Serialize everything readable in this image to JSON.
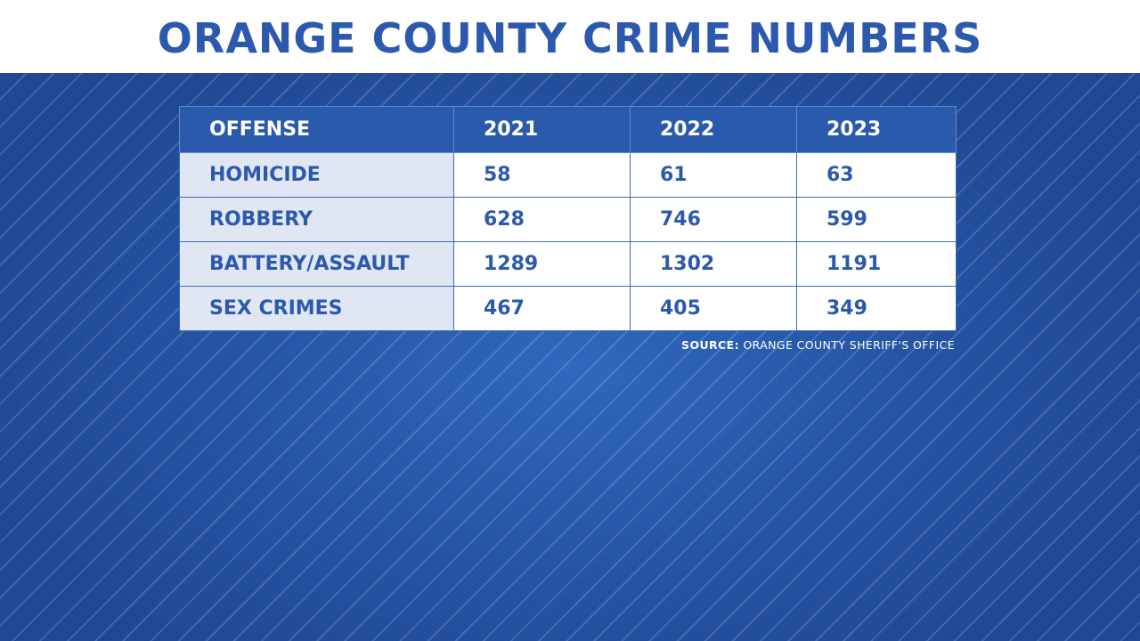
{
  "title": "ORANGE COUNTY CRIME NUMBERS",
  "source": {
    "label": "SOURCE:",
    "text": "ORANGE COUNTY SHERIFF'S OFFICE"
  },
  "colors": {
    "title": "#2c59ad",
    "header_bg": "#2a5aac",
    "label_bg": "#e0e7f3",
    "background": "#2757a8"
  },
  "chart_data": {
    "type": "table",
    "title": "ORANGE COUNTY CRIME NUMBERS",
    "columns": [
      "OFFENSE",
      "2021",
      "2022",
      "2023"
    ],
    "rows": [
      {
        "offense": "HOMICIDE",
        "values": [
          "58",
          "61",
          "63"
        ]
      },
      {
        "offense": "ROBBERY",
        "values": [
          "628",
          "746",
          "599"
        ]
      },
      {
        "offense": "BATTERY/ASSAULT",
        "values": [
          "1289",
          "1302",
          "1191"
        ]
      },
      {
        "offense": "SEX CRIMES",
        "values": [
          "467",
          "405",
          "349"
        ]
      }
    ]
  }
}
